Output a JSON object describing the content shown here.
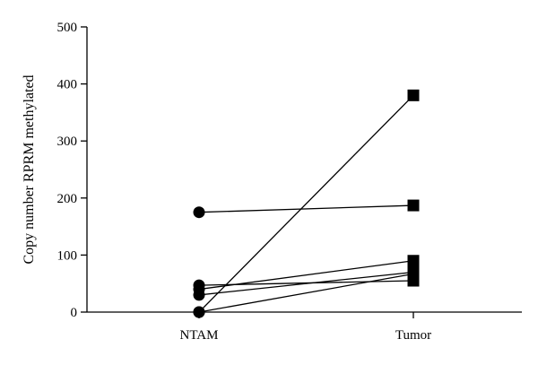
{
  "chart_data": {
    "type": "scatter",
    "ylabel": "Copy number RPRM methylated",
    "xlabel": "",
    "categories": [
      "NTAM",
      "Tumor"
    ],
    "ylim": [
      0,
      500
    ],
    "yticks": [
      0,
      100,
      200,
      300,
      400,
      500
    ],
    "grid": false,
    "markers": [
      "circle",
      "square"
    ],
    "pairs": [
      {
        "values": [
          175,
          187
        ]
      },
      {
        "values": [
          47,
          55
        ]
      },
      {
        "values": [
          40,
          90
        ]
      },
      {
        "values": [
          30,
          70
        ]
      },
      {
        "values": [
          0,
          380
        ]
      },
      {
        "values": [
          0,
          67
        ]
      }
    ]
  }
}
